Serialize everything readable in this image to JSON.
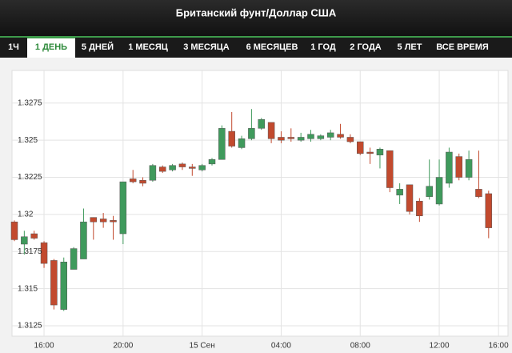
{
  "header": {
    "title": "Британский фунт/Доллар США"
  },
  "tabs": [
    {
      "label": "1Ч",
      "active": false
    },
    {
      "label": "1 ДЕНЬ",
      "active": true
    },
    {
      "label": "5 ДНЕЙ",
      "active": false
    },
    {
      "label": "1 МЕСЯЦ",
      "active": false
    },
    {
      "label": "3 МЕСЯЦА",
      "active": false
    },
    {
      "label": "6 МЕСЯЦЕВ",
      "active": false
    },
    {
      "label": "1 ГОД",
      "active": false
    },
    {
      "label": "2 ГОДА",
      "active": false
    },
    {
      "label": "5 ЛЕТ",
      "active": false
    },
    {
      "label": "ВСЕ ВРЕМЯ",
      "active": false
    }
  ],
  "chart_data": {
    "type": "candlestick",
    "up_color": "#3f9a5c",
    "down_color": "#c24a2e",
    "grid": true,
    "categories": [
      null,
      null,
      null,
      "16:00",
      null,
      null,
      null,
      null,
      null,
      null,
      null,
      "20:00",
      null,
      null,
      null,
      null,
      null,
      null,
      null,
      "15 Сен",
      null,
      null,
      null,
      null,
      null,
      null,
      null,
      "04:00",
      null,
      null,
      null,
      null,
      null,
      null,
      null,
      "08:00",
      null,
      null,
      null,
      null,
      null,
      null,
      null,
      "12:00",
      null,
      null,
      null,
      null,
      null,
      "16:00"
    ],
    "open": [
      1.3195,
      1.318,
      1.3187,
      1.3181,
      1.3169,
      1.3136,
      1.3163,
      1.317,
      1.3198,
      1.3197,
      1.3196,
      1.3187,
      1.3224,
      1.3223,
      1.3223,
      1.3232,
      1.323,
      1.3234,
      1.3232,
      1.323,
      1.3234,
      1.3237,
      1.3256,
      1.3245,
      1.3251,
      1.3258,
      1.3262,
      1.3252,
      1.3252,
      1.325,
      1.3251,
      1.3251,
      1.3252,
      1.3254,
      1.3252,
      1.3249,
      1.3242,
      1.324,
      1.3243,
      1.3213,
      1.322,
      1.3209,
      1.3212,
      1.3207,
      1.3221,
      1.3239,
      1.3225,
      1.3217,
      1.3214,
      null
    ],
    "high": [
      1.3196,
      1.3189,
      1.3189,
      1.3182,
      1.317,
      1.3171,
      1.3178,
      1.3204,
      1.3198,
      1.3201,
      1.3199,
      1.3222,
      1.323,
      1.3225,
      1.3234,
      1.3233,
      1.3234,
      1.3235,
      1.3234,
      1.3234,
      1.3238,
      1.326,
      1.3269,
      1.3253,
      1.3271,
      1.3265,
      1.3262,
      1.3256,
      1.3258,
      1.3255,
      1.3257,
      1.3254,
      1.3257,
      1.3261,
      1.3254,
      1.3249,
      1.3245,
      1.3245,
      1.3243,
      1.3221,
      1.322,
      1.3211,
      1.3237,
      1.3237,
      1.3245,
      1.3241,
      1.3243,
      1.3243,
      1.3216,
      null
    ],
    "low": [
      1.3182,
      1.3173,
      1.3183,
      1.3164,
      1.3136,
      1.3135,
      1.3163,
      1.317,
      1.3183,
      1.3191,
      1.3183,
      1.318,
      1.3221,
      1.3219,
      1.3222,
      1.3228,
      1.3229,
      1.323,
      1.3226,
      1.3229,
      1.3233,
      1.3237,
      1.3245,
      1.3244,
      1.325,
      1.3257,
      1.3248,
      1.3248,
      1.3249,
      1.3249,
      1.3249,
      1.325,
      1.325,
      1.3251,
      1.3248,
      1.324,
      1.3234,
      1.3231,
      1.3215,
      1.3207,
      1.32,
      1.3195,
      1.321,
      1.3206,
      1.3218,
      1.3223,
      1.3223,
      1.3211,
      1.3184,
      null
    ],
    "close": [
      1.3183,
      1.3185,
      1.3184,
      1.3167,
      1.3139,
      1.3168,
      1.3177,
      1.3195,
      1.3195,
      1.3195,
      1.3195,
      1.3222,
      1.3222,
      1.3221,
      1.3233,
      1.3229,
      1.3233,
      1.3232,
      1.3231,
      1.3233,
      1.3237,
      1.3258,
      1.3246,
      1.3251,
      1.3258,
      1.3264,
      1.3251,
      1.325,
      1.3251,
      1.3252,
      1.3254,
      1.3253,
      1.3255,
      1.3252,
      1.3249,
      1.3241,
      1.3241,
      1.3244,
      1.3218,
      1.3217,
      1.3202,
      1.3199,
      1.3219,
      1.3225,
      1.3242,
      1.3225,
      1.3237,
      1.3212,
      1.3191,
      null
    ],
    "ylim": [
      1.3118,
      1.3297
    ],
    "yticks": [
      1.3125,
      1.315,
      1.3175,
      1.32,
      1.3225,
      1.325,
      1.3275
    ]
  }
}
